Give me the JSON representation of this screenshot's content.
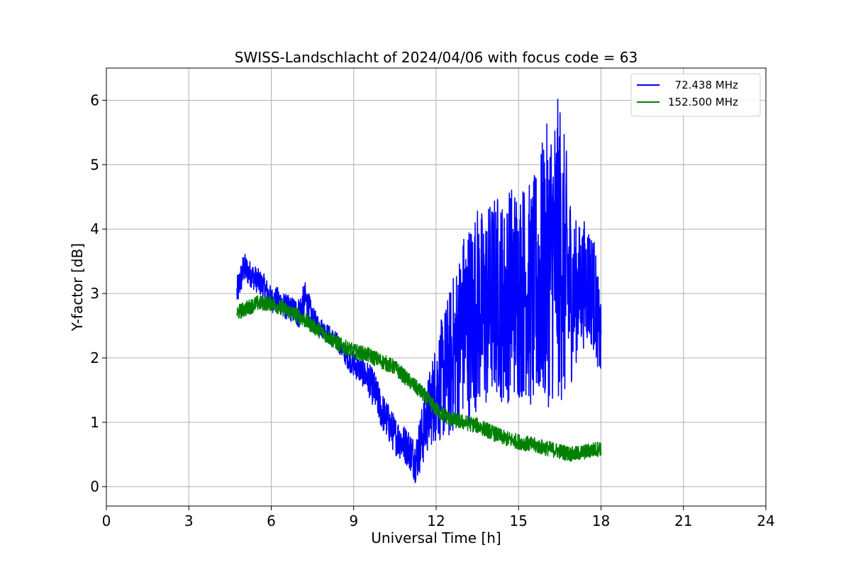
{
  "chart_data": {
    "type": "line",
    "title": "SWISS-Landschlacht of 2024/04/06 with focus code = 63",
    "xlabel": "Universal Time [h]",
    "ylabel": "Y-factor [dB]",
    "xlim": [
      0,
      24
    ],
    "ylim": [
      -0.3,
      6.5
    ],
    "xticks": [
      0,
      3,
      6,
      9,
      12,
      15,
      18,
      21,
      24
    ],
    "yticks": [
      0,
      1,
      2,
      3,
      4,
      5,
      6
    ],
    "grid": true,
    "legend_position": "top-right",
    "series": [
      {
        "name": "  72.438 MHz",
        "color": "#0000ff",
        "x": [
          4.75,
          5.0,
          5.25,
          5.5,
          5.75,
          6.0,
          6.25,
          6.5,
          6.75,
          7.0,
          7.25,
          7.5,
          7.75,
          8.0,
          8.25,
          8.5,
          8.75,
          9.0,
          9.25,
          9.5,
          9.75,
          10.0,
          10.25,
          10.5,
          10.75,
          11.0,
          11.25,
          11.5,
          11.75,
          12.0,
          12.25,
          12.5,
          12.75,
          13.0,
          13.25,
          13.5,
          13.75,
          14.0,
          14.25,
          14.5,
          14.75,
          15.0,
          15.25,
          15.5,
          15.75,
          16.0,
          16.25,
          16.5,
          16.75,
          17.0,
          17.25,
          17.5,
          17.75,
          18.0
        ],
        "y": [
          3.0,
          3.4,
          3.3,
          3.2,
          3.1,
          2.9,
          2.9,
          2.8,
          2.75,
          2.7,
          2.9,
          2.6,
          2.5,
          2.4,
          2.3,
          2.2,
          2.0,
          1.9,
          1.8,
          1.7,
          1.5,
          1.2,
          1.0,
          0.8,
          0.7,
          0.6,
          0.4,
          0.8,
          1.2,
          1.5,
          1.7,
          1.9,
          2.2,
          2.5,
          2.6,
          2.8,
          2.7,
          2.9,
          3.0,
          2.8,
          3.1,
          3.0,
          3.1,
          2.9,
          3.2,
          3.4,
          3.6,
          3.7,
          3.2,
          3.0,
          3.1,
          3.2,
          3.0,
          2.2
        ],
        "amp": [
          0.25,
          0.25,
          0.2,
          0.2,
          0.2,
          0.2,
          0.2,
          0.2,
          0.2,
          0.25,
          0.3,
          0.2,
          0.15,
          0.15,
          0.15,
          0.15,
          0.15,
          0.2,
          0.2,
          0.25,
          0.3,
          0.3,
          0.3,
          0.3,
          0.3,
          0.3,
          0.35,
          0.5,
          0.6,
          0.8,
          1.0,
          1.2,
          1.3,
          1.5,
          1.6,
          1.6,
          1.6,
          1.6,
          1.6,
          1.6,
          1.7,
          1.7,
          1.7,
          1.8,
          2.0,
          2.2,
          2.3,
          2.4,
          2.0,
          1.2,
          1.0,
          1.0,
          0.9,
          0.6
        ]
      },
      {
        "name": "152.500 MHz",
        "color": "#008000",
        "x": [
          4.75,
          5.0,
          5.5,
          6.0,
          6.5,
          7.0,
          7.5,
          8.0,
          8.5,
          9.0,
          9.5,
          10.0,
          10.5,
          11.0,
          11.5,
          12.0,
          12.5,
          13.0,
          13.5,
          14.0,
          14.5,
          15.0,
          15.5,
          16.0,
          16.5,
          17.0,
          17.5,
          18.0
        ],
        "y": [
          2.7,
          2.75,
          2.85,
          2.85,
          2.75,
          2.65,
          2.5,
          2.35,
          2.2,
          2.1,
          2.05,
          1.95,
          1.85,
          1.65,
          1.45,
          1.2,
          1.05,
          1.0,
          0.95,
          0.85,
          0.75,
          0.7,
          0.65,
          0.6,
          0.55,
          0.5,
          0.55,
          0.6
        ],
        "amp": [
          0.12,
          0.12,
          0.12,
          0.12,
          0.12,
          0.12,
          0.12,
          0.12,
          0.12,
          0.12,
          0.12,
          0.12,
          0.12,
          0.12,
          0.12,
          0.12,
          0.12,
          0.12,
          0.12,
          0.12,
          0.12,
          0.12,
          0.12,
          0.12,
          0.12,
          0.12,
          0.12,
          0.12
        ]
      }
    ]
  }
}
